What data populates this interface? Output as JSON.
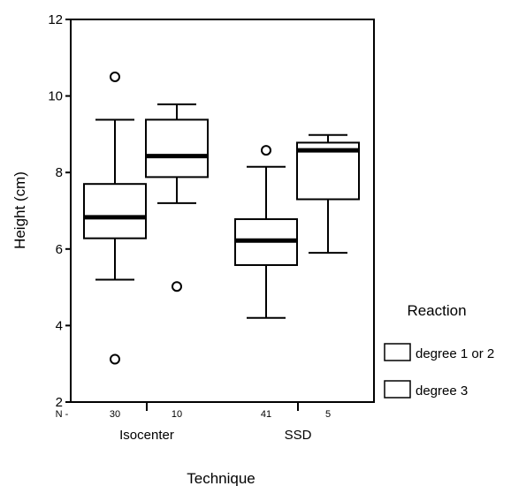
{
  "chart_data": {
    "type": "boxplot",
    "xlabel": "Technique",
    "ylabel": "Height (cm)",
    "ylim": [
      2,
      12
    ],
    "yticks": [
      "2",
      "4",
      "6",
      "8",
      "10",
      "12"
    ],
    "categories": [
      "Isocenter",
      "SSD"
    ],
    "count_prefix": "N -",
    "legend": {
      "title": "Reaction",
      "position": "right"
    },
    "series": [
      {
        "name": "degree 1 or 2",
        "boxes": [
          {
            "category": "Isocenter",
            "n": "30",
            "whisker_low": 5.2,
            "q1": 6.28,
            "median": 6.83,
            "q3": 7.7,
            "whisker_high": 9.38,
            "outliers": [
              10.5,
              3.12
            ]
          },
          {
            "category": "SSD",
            "n": "41",
            "whisker_low": 4.2,
            "q1": 5.58,
            "median": 6.22,
            "q3": 6.78,
            "whisker_high": 8.15,
            "outliers": [
              8.58
            ]
          }
        ]
      },
      {
        "name": "degree 3",
        "boxes": [
          {
            "category": "Isocenter",
            "n": "10",
            "whisker_low": 7.2,
            "q1": 7.88,
            "median": 8.43,
            "q3": 9.38,
            "whisker_high": 9.78,
            "outliers": [
              5.02
            ]
          },
          {
            "category": "SSD",
            "n": "5",
            "whisker_low": 5.9,
            "q1": 7.3,
            "median": 8.58,
            "q3": 8.78,
            "whisker_high": 8.98,
            "outliers": []
          }
        ]
      }
    ]
  }
}
